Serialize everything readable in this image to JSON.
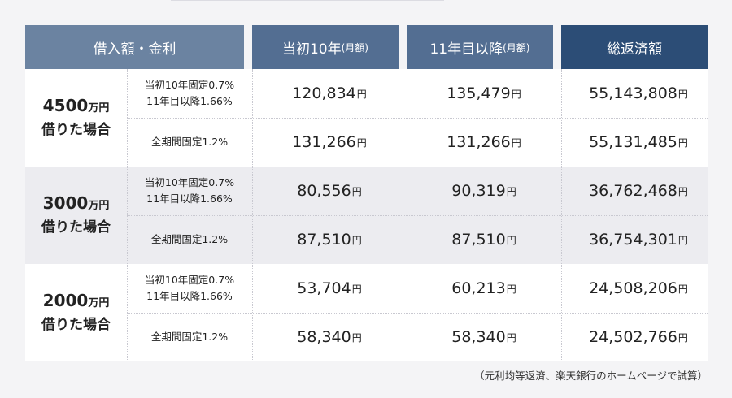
{
  "headers": {
    "col0": "借入額・金利",
    "col1_main": "当初10年",
    "col1_unit": "(月額)",
    "col2_main": "11年目以降",
    "col2_unit": "(月額)",
    "col3": "総返済額"
  },
  "groups": [
    {
      "amount": "4500",
      "unit": "万円",
      "suffix": "借りた場合",
      "rows": [
        {
          "line1": "当初10年固定0.7%",
          "line2": "11年目以降1.66%",
          "initial": "120,834",
          "after": "135,479",
          "total": "55,143,808"
        },
        {
          "line1": "全期間固定1.2%",
          "line2": "",
          "initial": "131,266",
          "after": "131,266",
          "total": "55,131,485"
        }
      ]
    },
    {
      "amount": "3000",
      "unit": "万円",
      "suffix": "借りた場合",
      "rows": [
        {
          "line1": "当初10年固定0.7%",
          "line2": "11年目以降1.66%",
          "initial": "80,556",
          "after": "90,319",
          "total": "36,762,468"
        },
        {
          "line1": "全期間固定1.2%",
          "line2": "",
          "initial": "87,510",
          "after": "87,510",
          "total": "36,754,301"
        }
      ]
    },
    {
      "amount": "2000",
      "unit": "万円",
      "suffix": "借りた場合",
      "rows": [
        {
          "line1": "当初10年固定0.7%",
          "line2": "11年目以降1.66%",
          "initial": "53,704",
          "after": "60,213",
          "total": "24,508,206"
        },
        {
          "line1": "全期間固定1.2%",
          "line2": "",
          "initial": "58,340",
          "after": "58,340",
          "total": "24,502,766"
        }
      ]
    }
  ],
  "currency_unit": "円",
  "footnote": "（元利均等返済、楽天銀行のホームページで試算）",
  "colors": {
    "header_left": "#6b83a1",
    "header_mid": "#536e92",
    "header_total": "#2c4d76",
    "band_white": "#ffffff",
    "band_gray": "#ececf0"
  }
}
